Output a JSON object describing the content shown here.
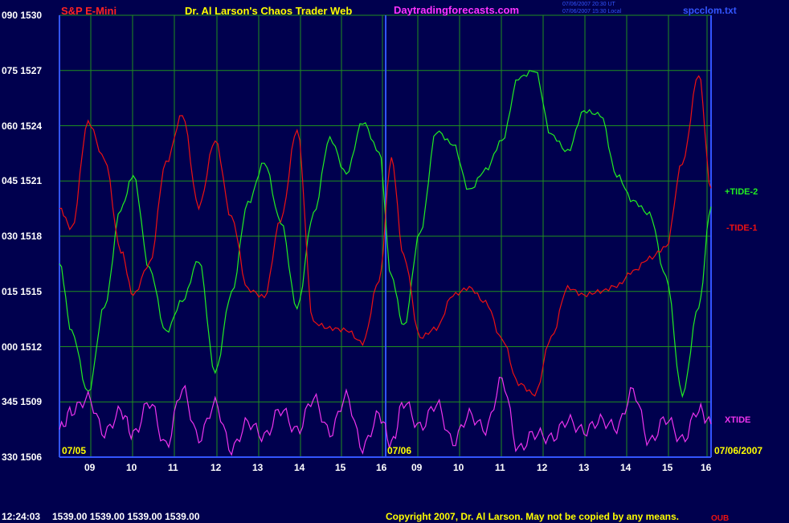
{
  "header": {
    "instrument": "S&P E-Mini",
    "site": "Dr. Al Larson's Chaos Trader Web",
    "url": "Daytradingforecasts.com",
    "stamp_ut": "07/06/2007 20:30 UT",
    "stamp_local": "07/06/2007 15:30 Local",
    "file": "spcclom.txt"
  },
  "footer": {
    "time": "12:24:03",
    "quotes": "1539.00 1539.00 1539.00 1539.00",
    "copyright": "Copyright 2007, Dr. Al Larson. May not be copied by any means.",
    "corner": "OUB"
  },
  "chart_data": {
    "type": "line",
    "colors": {
      "background": "#00004e",
      "grid": "#1f8f1f",
      "axis": "#3355ff",
      "tide2": "#22ee22",
      "tide1": "#ee1111",
      "xtide": "#ee33ee"
    },
    "y_ticks": [
      {
        "angle": "090",
        "price": "1530"
      },
      {
        "angle": "075",
        "price": "1527"
      },
      {
        "angle": "060",
        "price": "1524"
      },
      {
        "angle": "045",
        "price": "1521"
      },
      {
        "angle": "030",
        "price": "1518"
      },
      {
        "angle": "015",
        "price": "1515"
      },
      {
        "angle": "000",
        "price": "1512"
      },
      {
        "angle": "345",
        "price": "1509"
      },
      {
        "angle": "330",
        "price": "1506"
      }
    ],
    "ylim": [
      1506,
      1530
    ],
    "x_ticks": [
      "09",
      "10",
      "11",
      "12",
      "13",
      "14",
      "15",
      "16",
      "09",
      "10",
      "11",
      "12",
      "13",
      "14",
      "15",
      "16"
    ],
    "date_labels": [
      "07/05",
      "07/06",
      "07/06/2007"
    ],
    "x_hours": [
      8.2,
      8.5,
      8.9,
      9.3,
      9.7,
      10.0,
      10.4,
      10.8,
      11.2,
      11.6,
      12.0,
      12.4,
      12.8,
      13.2,
      13.6,
      14.0,
      14.4,
      14.8,
      15.2,
      15.6,
      16.0,
      16.3,
      16.6,
      17.0,
      17.4,
      17.8,
      18.2,
      18.6,
      19.0,
      19.4,
      19.8,
      20.2,
      20.6,
      21.0,
      21.4,
      21.8,
      22.2,
      22.6,
      23.0,
      23.4,
      23.8,
      24.1
    ],
    "series": [
      {
        "name": "+TIDE-2",
        "values": [
          1516.5,
          1512.8,
          1509.5,
          1514.2,
          1519.5,
          1521.3,
          1516.2,
          1512.8,
          1514.5,
          1516.7,
          1510.6,
          1514.9,
          1519.8,
          1522.0,
          1518.8,
          1514.1,
          1519.2,
          1523.3,
          1521.4,
          1524.2,
          1522.6,
          1515.8,
          1513.1,
          1518.2,
          1523.7,
          1523.0,
          1520.5,
          1521.6,
          1523.2,
          1526.6,
          1527.0,
          1523.5,
          1522.6,
          1524.8,
          1524.6,
          1521.3,
          1519.9,
          1519.2,
          1515.8,
          1509.4,
          1514.2,
          1519.6
        ]
      },
      {
        "name": "-TIDE-1",
        "values": [
          1519.5,
          1518.4,
          1524.2,
          1522.2,
          1517.2,
          1514.8,
          1516.5,
          1522.0,
          1524.6,
          1519.6,
          1523.2,
          1519.0,
          1515.1,
          1514.7,
          1518.9,
          1523.8,
          1513.3,
          1513.0,
          1512.9,
          1512.2,
          1515.6,
          1522.2,
          1516.9,
          1512.5,
          1513.0,
          1514.8,
          1515.2,
          1514.4,
          1512.4,
          1510.0,
          1509.4,
          1512.5,
          1515.2,
          1514.8,
          1515.0,
          1515.3,
          1516.1,
          1516.8,
          1517.4,
          1522.0,
          1526.8,
          1520.6
        ]
      },
      {
        "name": "XTIDE",
        "values": [
          1507.5,
          1508.5,
          1509.2,
          1507.3,
          1508.5,
          1507.2,
          1509.0,
          1506.6,
          1509.7,
          1507.0,
          1508.9,
          1506.4,
          1507.9,
          1507.1,
          1508.6,
          1507.4,
          1509.2,
          1507.3,
          1509.3,
          1506.5,
          1508.3,
          1506.7,
          1509.0,
          1507.6,
          1508.9,
          1506.8,
          1508.3,
          1507.5,
          1510.2,
          1506.4,
          1507.3,
          1507.0,
          1508.0,
          1507.4,
          1508.0,
          1507.6,
          1509.6,
          1506.8,
          1508.1,
          1506.9,
          1508.6,
          1507.8
        ]
      }
    ]
  }
}
